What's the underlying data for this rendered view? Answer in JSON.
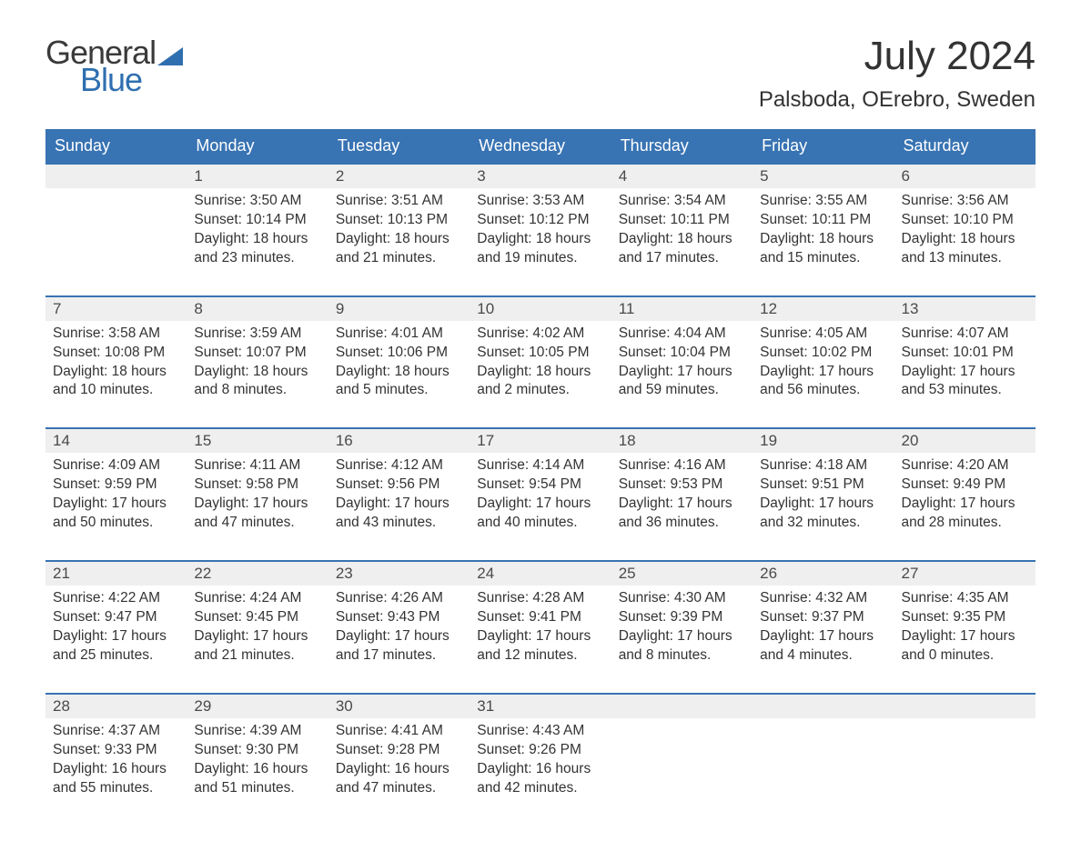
{
  "logo": {
    "text_top": "General",
    "text_bottom": "Blue",
    "flag_color": "#2f6fb0"
  },
  "title": "July 2024",
  "location": "Palsboda, OErebro, Sweden",
  "colors": {
    "header_bg": "#3873b3",
    "header_text": "#ffffff",
    "numrow_bg": "#efefef",
    "border_top": "#3873b3",
    "body_text": "#333333"
  },
  "day_headers": [
    "Sunday",
    "Monday",
    "Tuesday",
    "Wednesday",
    "Thursday",
    "Friday",
    "Saturday"
  ],
  "weeks": [
    {
      "nums": [
        "",
        "1",
        "2",
        "3",
        "4",
        "5",
        "6"
      ],
      "cells": [
        null,
        {
          "sunrise": "3:50 AM",
          "sunset": "10:14 PM",
          "daylight": "18 hours and 23 minutes."
        },
        {
          "sunrise": "3:51 AM",
          "sunset": "10:13 PM",
          "daylight": "18 hours and 21 minutes."
        },
        {
          "sunrise": "3:53 AM",
          "sunset": "10:12 PM",
          "daylight": "18 hours and 19 minutes."
        },
        {
          "sunrise": "3:54 AM",
          "sunset": "10:11 PM",
          "daylight": "18 hours and 17 minutes."
        },
        {
          "sunrise": "3:55 AM",
          "sunset": "10:11 PM",
          "daylight": "18 hours and 15 minutes."
        },
        {
          "sunrise": "3:56 AM",
          "sunset": "10:10 PM",
          "daylight": "18 hours and 13 minutes."
        }
      ]
    },
    {
      "nums": [
        "7",
        "8",
        "9",
        "10",
        "11",
        "12",
        "13"
      ],
      "cells": [
        {
          "sunrise": "3:58 AM",
          "sunset": "10:08 PM",
          "daylight": "18 hours and 10 minutes."
        },
        {
          "sunrise": "3:59 AM",
          "sunset": "10:07 PM",
          "daylight": "18 hours and 8 minutes."
        },
        {
          "sunrise": "4:01 AM",
          "sunset": "10:06 PM",
          "daylight": "18 hours and 5 minutes."
        },
        {
          "sunrise": "4:02 AM",
          "sunset": "10:05 PM",
          "daylight": "18 hours and 2 minutes."
        },
        {
          "sunrise": "4:04 AM",
          "sunset": "10:04 PM",
          "daylight": "17 hours and 59 minutes."
        },
        {
          "sunrise": "4:05 AM",
          "sunset": "10:02 PM",
          "daylight": "17 hours and 56 minutes."
        },
        {
          "sunrise": "4:07 AM",
          "sunset": "10:01 PM",
          "daylight": "17 hours and 53 minutes."
        }
      ]
    },
    {
      "nums": [
        "14",
        "15",
        "16",
        "17",
        "18",
        "19",
        "20"
      ],
      "cells": [
        {
          "sunrise": "4:09 AM",
          "sunset": "9:59 PM",
          "daylight": "17 hours and 50 minutes."
        },
        {
          "sunrise": "4:11 AM",
          "sunset": "9:58 PM",
          "daylight": "17 hours and 47 minutes."
        },
        {
          "sunrise": "4:12 AM",
          "sunset": "9:56 PM",
          "daylight": "17 hours and 43 minutes."
        },
        {
          "sunrise": "4:14 AM",
          "sunset": "9:54 PM",
          "daylight": "17 hours and 40 minutes."
        },
        {
          "sunrise": "4:16 AM",
          "sunset": "9:53 PM",
          "daylight": "17 hours and 36 minutes."
        },
        {
          "sunrise": "4:18 AM",
          "sunset": "9:51 PM",
          "daylight": "17 hours and 32 minutes."
        },
        {
          "sunrise": "4:20 AM",
          "sunset": "9:49 PM",
          "daylight": "17 hours and 28 minutes."
        }
      ]
    },
    {
      "nums": [
        "21",
        "22",
        "23",
        "24",
        "25",
        "26",
        "27"
      ],
      "cells": [
        {
          "sunrise": "4:22 AM",
          "sunset": "9:47 PM",
          "daylight": "17 hours and 25 minutes."
        },
        {
          "sunrise": "4:24 AM",
          "sunset": "9:45 PM",
          "daylight": "17 hours and 21 minutes."
        },
        {
          "sunrise": "4:26 AM",
          "sunset": "9:43 PM",
          "daylight": "17 hours and 17 minutes."
        },
        {
          "sunrise": "4:28 AM",
          "sunset": "9:41 PM",
          "daylight": "17 hours and 12 minutes."
        },
        {
          "sunrise": "4:30 AM",
          "sunset": "9:39 PM",
          "daylight": "17 hours and 8 minutes."
        },
        {
          "sunrise": "4:32 AM",
          "sunset": "9:37 PM",
          "daylight": "17 hours and 4 minutes."
        },
        {
          "sunrise": "4:35 AM",
          "sunset": "9:35 PM",
          "daylight": "17 hours and 0 minutes."
        }
      ]
    },
    {
      "nums": [
        "28",
        "29",
        "30",
        "31",
        "",
        "",
        ""
      ],
      "cells": [
        {
          "sunrise": "4:37 AM",
          "sunset": "9:33 PM",
          "daylight": "16 hours and 55 minutes."
        },
        {
          "sunrise": "4:39 AM",
          "sunset": "9:30 PM",
          "daylight": "16 hours and 51 minutes."
        },
        {
          "sunrise": "4:41 AM",
          "sunset": "9:28 PM",
          "daylight": "16 hours and 47 minutes."
        },
        {
          "sunrise": "4:43 AM",
          "sunset": "9:26 PM",
          "daylight": "16 hours and 42 minutes."
        },
        null,
        null,
        null
      ]
    }
  ],
  "labels": {
    "sunrise": "Sunrise: ",
    "sunset": "Sunset: ",
    "daylight": "Daylight: "
  }
}
